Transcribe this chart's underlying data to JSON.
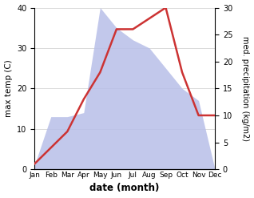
{
  "months": [
    "Jan",
    "Feb",
    "Mar",
    "Apr",
    "May",
    "Jun",
    "Jul",
    "Aug",
    "Sep",
    "Oct",
    "Nov",
    "Dec"
  ],
  "temp": [
    1,
    13,
    13,
    14,
    40,
    35,
    32,
    30,
    25,
    20,
    17,
    0
  ],
  "precip": [
    1,
    4,
    7,
    13,
    18,
    26,
    26,
    28,
    30,
    18,
    10,
    10
  ],
  "temp_fill_color": "#b8bfe8",
  "precip_color": "#cc3333",
  "temp_ylim": [
    0,
    40
  ],
  "precip_ylim": [
    0,
    30
  ],
  "xlabel": "date (month)",
  "ylabel_left": "max temp (C)",
  "ylabel_right": "med. precipitation (kg/m2)",
  "yticks_left": [
    0,
    10,
    20,
    30,
    40
  ],
  "yticks_right": [
    0,
    5,
    10,
    15,
    20,
    25,
    30
  ],
  "bg_color": "#ffffff"
}
